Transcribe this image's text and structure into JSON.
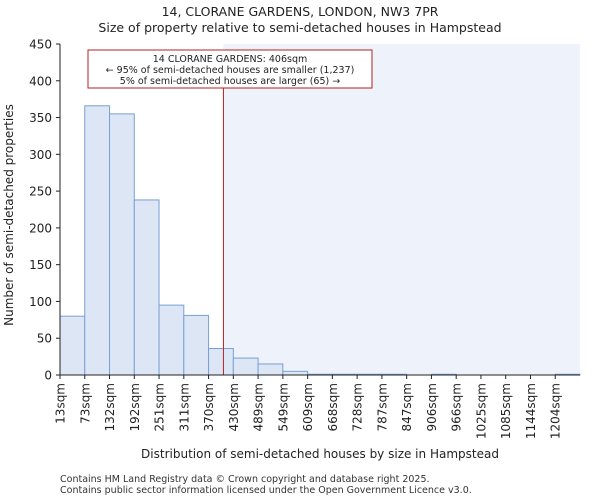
{
  "chart_data": {
    "type": "bar",
    "title": "14, CLORANE GARDENS, LONDON, NW3 7PR",
    "subtitle": "Size of property relative to semi-detached houses in Hampstead",
    "xlabel": "Distribution of semi-detached houses by size in Hampstead",
    "ylabel": "Number of semi-detached properties",
    "ylim": [
      0,
      450
    ],
    "yticks": [
      0,
      50,
      100,
      150,
      200,
      250,
      300,
      350,
      400,
      450
    ],
    "categories": [
      "13sqm",
      "73sqm",
      "132sqm",
      "192sqm",
      "251sqm",
      "311sqm",
      "370sqm",
      "430sqm",
      "489sqm",
      "549sqm",
      "609sqm",
      "668sqm",
      "728sqm",
      "787sqm",
      "847sqm",
      "906sqm",
      "966sqm",
      "1025sqm",
      "1085sqm",
      "1144sqm",
      "1204sqm"
    ],
    "values": [
      80,
      366,
      355,
      238,
      95,
      81,
      36,
      23,
      15,
      5,
      1,
      1,
      1,
      1,
      0,
      1,
      0,
      0,
      0,
      0,
      1
    ],
    "property_marker": {
      "value": 406,
      "unit": "sqm"
    },
    "annotation": {
      "lines": [
        "14 CLORANE GARDENS: 406sqm",
        "← 95% of semi-detached houses are smaller (1,237)",
        "5% of semi-detached houses are larger (65) →"
      ]
    },
    "colors": {
      "bar_fill": "#dce6f5",
      "bar_stroke": "#7a9fd4",
      "marker": "#b22222",
      "shade": "#eef2fa"
    },
    "grid": false
  },
  "footer": {
    "line1": "Contains HM Land Registry data © Crown copyright and database right 2025.",
    "line2": "Contains public sector information licensed under the Open Government Licence v3.0."
  }
}
